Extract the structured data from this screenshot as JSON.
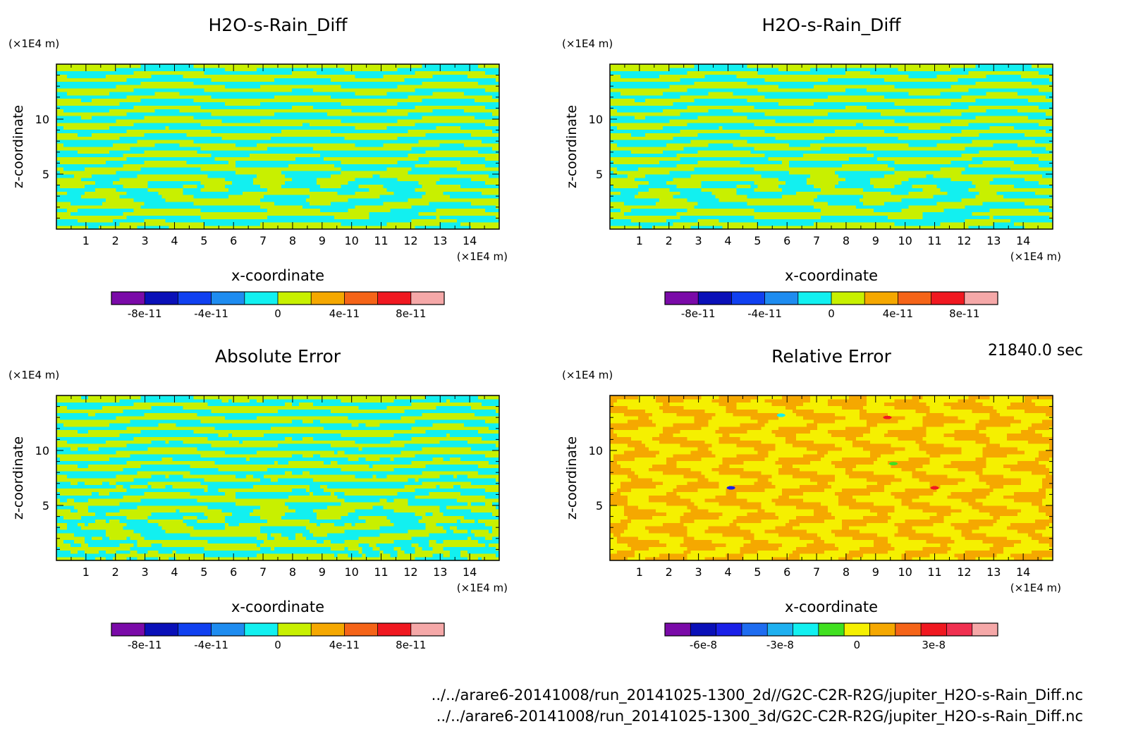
{
  "time_label": "21840.0 sec",
  "files": [
    "../../arare6-20141008/run_20141025-1300_2d//G2C-C2R-R2G/jupiter_H2O-s-Rain_Diff.nc",
    "../../arare6-20141008/run_20141025-1300_3d/G2C-C2R-R2G/jupiter_H2O-s-Rain_Diff.nc"
  ],
  "colors": {
    "blue_green": [
      "#7a0aa8",
      "#0a10b8",
      "#1040f0",
      "#1e8cf0",
      "#12f0f0",
      "#c8f000",
      "#f5a800",
      "#f56418",
      "#f01820",
      "#f5a8a8"
    ],
    "relative": [
      "#7a0aa8",
      "#0a10b8",
      "#1a20e8",
      "#1e6cf0",
      "#1eb0f0",
      "#12f0f0",
      "#40e020",
      "#f5f000",
      "#f5a800",
      "#f56418",
      "#f01820",
      "#f03050",
      "#f5a8a8"
    ]
  },
  "chart_data": [
    {
      "type": "heatmap",
      "title": "H2O-s-Rain_Diff",
      "xlabel": "x-coordinate",
      "ylabel": "z-coordinate",
      "x_unit": "(×1E4 m)",
      "y_unit": "(×1E4 m)",
      "xlim": [
        0,
        15
      ],
      "ylim": [
        0,
        15
      ],
      "x_ticks": [
        "1",
        "2",
        "3",
        "4",
        "5",
        "6",
        "7",
        "8",
        "9",
        "10",
        "11",
        "12",
        "13",
        "14"
      ],
      "y_ticks": [
        "5",
        "10"
      ],
      "colorbar": {
        "levels": [
          -1e-10,
          -8e-11,
          -6e-11,
          -4e-11,
          -2e-11,
          0,
          2e-11,
          4e-11,
          6e-11,
          8e-11,
          1e-10
        ],
        "tick_labels": [
          "-8e-11",
          "-4e-11",
          "0",
          "4e-11",
          "8e-11"
        ],
        "palette": "blue_green"
      },
      "dominant_colors": [
        "#12f0f0",
        "#c8f000"
      ]
    },
    {
      "type": "heatmap",
      "title": "H2O-s-Rain_Diff",
      "xlabel": "x-coordinate",
      "ylabel": "z-coordinate",
      "x_unit": "(×1E4 m)",
      "y_unit": "(×1E4 m)",
      "xlim": [
        0,
        15
      ],
      "ylim": [
        0,
        15
      ],
      "x_ticks": [
        "1",
        "2",
        "3",
        "4",
        "5",
        "6",
        "7",
        "8",
        "9",
        "10",
        "11",
        "12",
        "13",
        "14"
      ],
      "y_ticks": [
        "5",
        "10"
      ],
      "colorbar": {
        "levels": [
          -1e-10,
          -8e-11,
          -6e-11,
          -4e-11,
          -2e-11,
          0,
          2e-11,
          4e-11,
          6e-11,
          8e-11,
          1e-10
        ],
        "tick_labels": [
          "-8e-11",
          "-4e-11",
          "0",
          "4e-11",
          "8e-11"
        ],
        "palette": "blue_green"
      },
      "dominant_colors": [
        "#12f0f0",
        "#c8f000"
      ]
    },
    {
      "type": "heatmap",
      "title": "Absolute Error",
      "xlabel": "x-coordinate",
      "ylabel": "z-coordinate",
      "x_unit": "(×1E4 m)",
      "y_unit": "(×1E4 m)",
      "xlim": [
        0,
        15
      ],
      "ylim": [
        0,
        15
      ],
      "x_ticks": [
        "1",
        "2",
        "3",
        "4",
        "5",
        "6",
        "7",
        "8",
        "9",
        "10",
        "11",
        "12",
        "13",
        "14"
      ],
      "y_ticks": [
        "5",
        "10"
      ],
      "colorbar": {
        "levels": [
          -1e-10,
          -8e-11,
          -6e-11,
          -4e-11,
          -2e-11,
          0,
          2e-11,
          4e-11,
          6e-11,
          8e-11,
          1e-10
        ],
        "tick_labels": [
          "-8e-11",
          "-4e-11",
          "0",
          "4e-11",
          "8e-11"
        ],
        "palette": "blue_green"
      },
      "dominant_colors": [
        "#12f0f0",
        "#c8f000"
      ]
    },
    {
      "type": "heatmap",
      "title": "Relative Error",
      "xlabel": "x-coordinate",
      "ylabel": "z-coordinate",
      "x_unit": "(×1E4 m)",
      "y_unit": "(×1E4 m)",
      "xlim": [
        0,
        15
      ],
      "ylim": [
        0,
        15
      ],
      "x_ticks": [
        "1",
        "2",
        "3",
        "4",
        "5",
        "6",
        "7",
        "8",
        "9",
        "10",
        "11",
        "12",
        "13",
        "14"
      ],
      "y_ticks": [
        "5",
        "10"
      ],
      "colorbar": {
        "levels": [
          -7.5e-08,
          -6.5e-08,
          -5.5e-08,
          -4.5e-08,
          -3.5e-08,
          -2.5e-08,
          -1.5e-08,
          -5e-09,
          5e-09,
          1.5e-08,
          2.5e-08,
          3.5e-08,
          4.5e-08,
          5.5e-08
        ],
        "tick_labels": [
          "-6e-8",
          "-3e-8",
          "0",
          "3e-8"
        ],
        "palette": "relative"
      },
      "dominant_colors": [
        "#f5f000",
        "#f5a800"
      ]
    }
  ]
}
